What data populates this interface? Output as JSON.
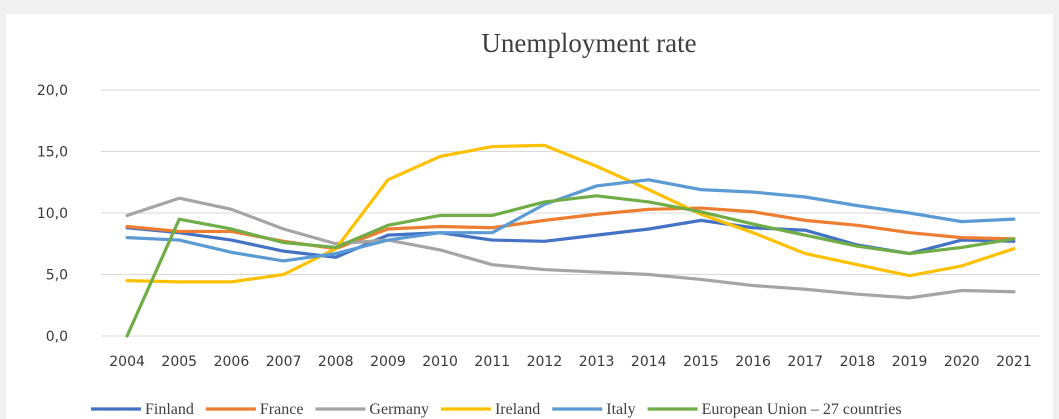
{
  "chart_data": {
    "type": "line",
    "title": "Unemployment rate",
    "xlabel": "",
    "ylabel": "",
    "x": [
      "2004",
      "2005",
      "2006",
      "2007",
      "2008",
      "2009",
      "2010",
      "2011",
      "2012",
      "2013",
      "2014",
      "2015",
      "2016",
      "2017",
      "2018",
      "2019",
      "2020",
      "2021"
    ],
    "ylim": [
      0,
      20
    ],
    "yticks": [
      "0,0",
      "5,0",
      "10,0",
      "15,0",
      "20,0"
    ],
    "ytick_values": [
      0,
      5,
      10,
      15,
      20
    ],
    "grid": true,
    "legend_position": "bottom",
    "series": [
      {
        "name": "Finland",
        "color": "#4472c4",
        "values": [
          8.8,
          8.4,
          7.8,
          6.9,
          6.4,
          8.2,
          8.4,
          7.8,
          7.7,
          8.2,
          8.7,
          9.4,
          8.8,
          8.6,
          7.4,
          6.7,
          7.8,
          7.7
        ]
      },
      {
        "name": "France",
        "color": "#ed7d31",
        "values": [
          8.9,
          8.5,
          8.5,
          7.7,
          7.1,
          8.7,
          8.9,
          8.8,
          9.4,
          9.9,
          10.3,
          10.4,
          10.1,
          9.4,
          9.0,
          8.4,
          8.0,
          7.9
        ]
      },
      {
        "name": "Germany",
        "color": "#a5a5a5",
        "values": [
          9.8,
          11.2,
          10.3,
          8.7,
          7.5,
          7.8,
          7.0,
          5.8,
          5.4,
          5.2,
          5.0,
          4.6,
          4.1,
          3.8,
          3.4,
          3.1,
          3.7,
          3.6
        ]
      },
      {
        "name": "Ireland",
        "color": "#ffc000",
        "values": [
          4.5,
          4.4,
          4.4,
          5.0,
          7.1,
          12.7,
          14.6,
          15.4,
          15.5,
          13.8,
          11.9,
          9.9,
          8.4,
          6.7,
          5.8,
          4.9,
          5.7,
          7.1
        ]
      },
      {
        "name": "Italy",
        "color": "#5b9bd5",
        "values": [
          8.0,
          7.8,
          6.8,
          6.1,
          6.7,
          7.8,
          8.4,
          8.4,
          10.7,
          12.2,
          12.7,
          11.9,
          11.7,
          11.3,
          10.6,
          10.0,
          9.3,
          9.5
        ]
      },
      {
        "name": "European Union – 27 countries",
        "color": "#70ad47",
        "values": [
          0.0,
          9.5,
          8.7,
          7.6,
          7.2,
          9.0,
          9.8,
          9.8,
          10.9,
          11.4,
          10.9,
          10.1,
          9.1,
          8.2,
          7.3,
          6.7,
          7.2,
          7.9
        ]
      }
    ]
  }
}
